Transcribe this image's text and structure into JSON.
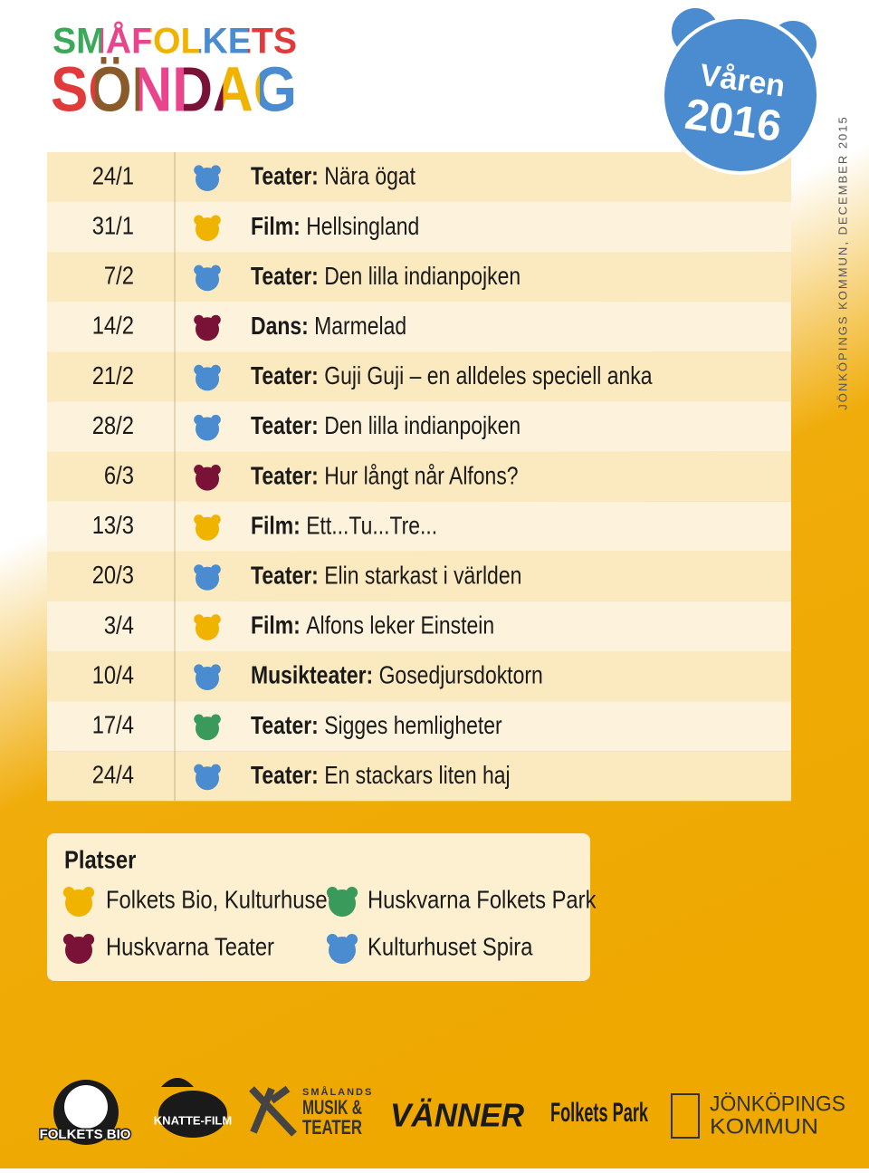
{
  "header": {
    "line1": "SMÅFOLKETS",
    "line2": "SÖNDAG"
  },
  "badge": {
    "season": "Våren",
    "year": "2016"
  },
  "side_note": "JÖNKÖPINGS KOMMUN, DECEMBER 2015",
  "schedule": [
    {
      "date": "24/1",
      "color": "#4a8ccf",
      "category": "Teater:",
      "title": "Nära ögat"
    },
    {
      "date": "31/1",
      "color": "#f0b400",
      "category": "Film:",
      "title": "Hellsingland"
    },
    {
      "date": "7/2",
      "color": "#4a8ccf",
      "category": "Teater:",
      "title": "Den lilla indianpojken"
    },
    {
      "date": "14/2",
      "color": "#7a1238",
      "category": "Dans:",
      "title": "Marmelad"
    },
    {
      "date": "21/2",
      "color": "#4a8ccf",
      "category": "Teater:",
      "title": "Guji Guji – en alldeles speciell anka"
    },
    {
      "date": "28/2",
      "color": "#4a8ccf",
      "category": "Teater:",
      "title": "Den lilla indianpojken"
    },
    {
      "date": "6/3",
      "color": "#7a1238",
      "category": "Teater:",
      "title": "Hur långt når Alfons?"
    },
    {
      "date": "13/3",
      "color": "#f0b400",
      "category": "Film:",
      "title": "Ett...Tu...Tre..."
    },
    {
      "date": "20/3",
      "color": "#4a8ccf",
      "category": "Teater:",
      "title": "Elin starkast i världen"
    },
    {
      "date": "3/4",
      "color": "#f0b400",
      "category": "Film:",
      "title": "Alfons leker Einstein"
    },
    {
      "date": "10/4",
      "color": "#4a8ccf",
      "category": "Musikteater:",
      "title": "Gosedjursdoktorn"
    },
    {
      "date": "17/4",
      "color": "#3a9a5b",
      "category": "Teater:",
      "title": "Sigges hemligheter"
    },
    {
      "date": "24/4",
      "color": "#4a8ccf",
      "category": "Teater:",
      "title": "En stackars liten haj"
    }
  ],
  "venues": {
    "title": "Platser",
    "items": [
      {
        "name": "Folkets Bio, Kulturhuset",
        "color": "#f0b400"
      },
      {
        "name": "Huskvarna Folkets Park",
        "color": "#3a9a5b"
      },
      {
        "name": "Huskvarna Teater",
        "color": "#7a1238"
      },
      {
        "name": "Kulturhuset Spira",
        "color": "#4a8ccf"
      }
    ]
  },
  "sponsors": [
    "FOLKETS BIO",
    "KNATTE-FILM",
    "SMÅLANDS",
    "MUSIK &",
    "TEATER",
    "VÄNNER",
    "Folkets Park",
    "JÖNKÖPINGS",
    "KOMMUN"
  ]
}
